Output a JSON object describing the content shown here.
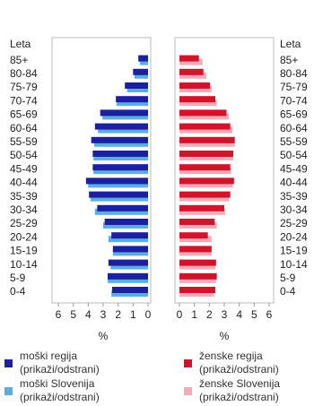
{
  "chart_data": {
    "type": "pyramid",
    "category_header": "Leta",
    "categories": [
      "85+",
      "80-84",
      "75-79",
      "70-74",
      "65-69",
      "60-64",
      "55-59",
      "50-54",
      "45-49",
      "40-44",
      "35-39",
      "30-34",
      "25-29",
      "20-24",
      "15-19",
      "10-14",
      "5-9",
      "0-4"
    ],
    "xlim": [
      0,
      6
    ],
    "xticks": [
      0,
      1,
      2,
      3,
      4,
      5,
      6
    ],
    "xlabel": "%",
    "series": [
      {
        "name": "moški regija",
        "toggle_label": "(prikaži/odstrani)",
        "side": "left",
        "color": "#1c1f9e",
        "values": [
          0.65,
          1.0,
          1.55,
          2.15,
          3.2,
          3.55,
          3.8,
          3.7,
          3.7,
          4.15,
          3.95,
          3.4,
          2.9,
          2.45,
          2.35,
          2.65,
          2.7,
          2.4
        ]
      },
      {
        "name": "moški Slovenija",
        "toggle_label": "(prikaži/odstrani)",
        "side": "left",
        "color": "#5aaee2",
        "values": [
          0.55,
          0.9,
          1.4,
          2.1,
          3.05,
          3.35,
          3.6,
          3.65,
          3.65,
          4.0,
          3.85,
          3.55,
          3.0,
          2.65,
          2.35,
          2.5,
          2.7,
          2.45
        ]
      },
      {
        "name": "ženske regija",
        "toggle_label": "(prikaži/odstrani)",
        "side": "right",
        "color": "#d0142c",
        "values": [
          1.3,
          1.6,
          2.05,
          2.4,
          3.15,
          3.4,
          3.7,
          3.6,
          3.4,
          3.65,
          3.4,
          3.0,
          2.35,
          1.9,
          2.15,
          2.45,
          2.5,
          2.4
        ]
      },
      {
        "name": "ženske Slovenija",
        "toggle_label": "(prikaži/odstrani)",
        "side": "right",
        "color": "#f6a9b6",
        "values": [
          1.55,
          1.8,
          2.15,
          2.5,
          3.3,
          3.55,
          3.7,
          3.6,
          3.45,
          3.55,
          3.3,
          3.05,
          2.5,
          2.15,
          2.15,
          2.4,
          2.45,
          2.3
        ]
      }
    ]
  }
}
